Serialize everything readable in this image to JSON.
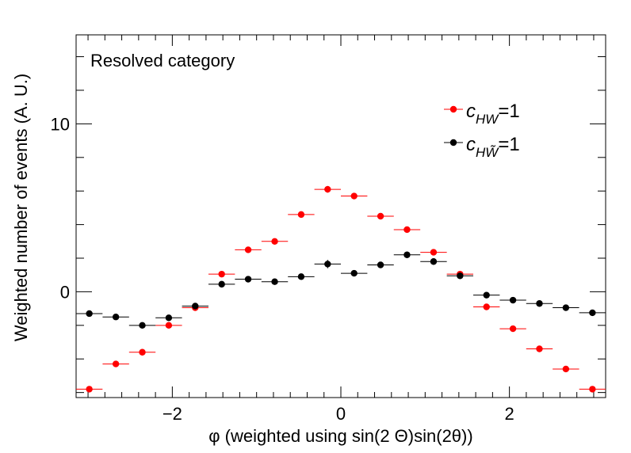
{
  "chart_data": {
    "type": "scatter",
    "annotation": "Resolved category",
    "xlabel": "φ (weighted using sin(2 Θ)sin(2θ))",
    "ylabel": "Weighted number of events (A. U.)",
    "xlim": [
      -3.1416,
      3.1416
    ],
    "ylim": [
      -6.3,
      15.3
    ],
    "x_ticks": [
      -2,
      0,
      2
    ],
    "x_tick_labels": [
      "−2",
      "0",
      "2"
    ],
    "y_ticks": [
      0,
      10
    ],
    "y_tick_labels": [
      "0",
      "10"
    ],
    "bin_width": 0.31416,
    "x": [
      -2.985,
      -2.67,
      -2.356,
      -2.042,
      -1.728,
      -1.414,
      -1.1,
      -0.785,
      -0.471,
      -0.157,
      0.157,
      0.471,
      0.785,
      1.1,
      1.414,
      1.728,
      2.042,
      2.356,
      2.67,
      2.985
    ],
    "series": [
      {
        "name": "c_HW=1",
        "label_main": "c",
        "label_sub": "HW",
        "label_tail": "=1",
        "color": "#ff0000",
        "values": [
          -5.8,
          -4.3,
          -3.6,
          -2.0,
          -0.95,
          1.05,
          2.5,
          3.0,
          4.6,
          6.1,
          5.7,
          4.5,
          3.7,
          2.35,
          1.05,
          -0.9,
          -2.2,
          -3.4,
          -4.6,
          -5.8
        ],
        "errors": [
          0.1,
          0.1,
          0.1,
          0.1,
          0.1,
          0.15,
          0.15,
          0.15,
          0.15,
          0.2,
          0.15,
          0.15,
          0.15,
          0.15,
          0.15,
          0.1,
          0.1,
          0.1,
          0.1,
          0.1
        ]
      },
      {
        "name": "c_HW~=1",
        "label_main": "c",
        "label_sub": "HW̃",
        "label_tail": "=1",
        "color": "#000000",
        "values": [
          -1.3,
          -1.5,
          -2.0,
          -1.55,
          -0.85,
          0.45,
          0.75,
          0.6,
          0.9,
          1.65,
          1.1,
          1.6,
          2.2,
          1.8,
          0.95,
          -0.2,
          -0.5,
          -0.7,
          -0.95,
          -1.25
        ],
        "errors": [
          0.15,
          0.15,
          0.15,
          0.15,
          0.15,
          0.15,
          0.15,
          0.15,
          0.15,
          0.25,
          0.15,
          0.15,
          0.2,
          0.2,
          0.15,
          0.15,
          0.15,
          0.15,
          0.15,
          0.15
        ]
      }
    ]
  }
}
